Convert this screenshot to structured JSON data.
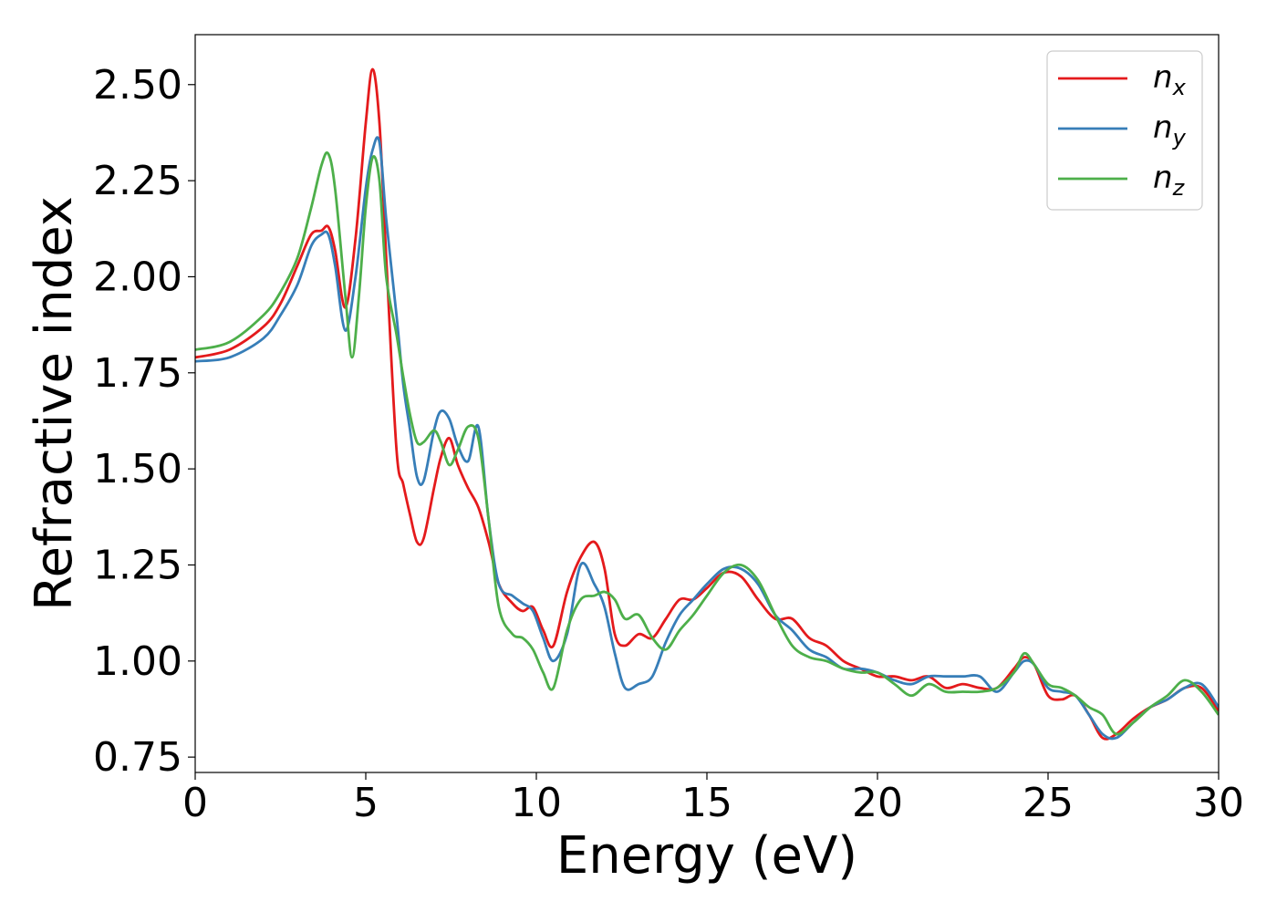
{
  "chart_data": {
    "type": "line",
    "title": "",
    "xlabel": "Energy (eV)",
    "ylabel": "Refractive index",
    "xlim": [
      0,
      30
    ],
    "ylim": [
      0.71,
      2.63
    ],
    "xticks": [
      0,
      5,
      10,
      15,
      20,
      25,
      30
    ],
    "yticks": [
      0.75,
      1.0,
      1.25,
      1.5,
      1.75,
      2.0,
      2.25,
      2.5
    ],
    "ytick_labels": [
      "0.75",
      "1.00",
      "1.25",
      "1.50",
      "1.75",
      "2.00",
      "2.25",
      "2.50"
    ],
    "grid": false,
    "legend_position": "top-right",
    "series": [
      {
        "name": "n",
        "subscript": "x",
        "color": "#e41a1c",
        "x": [
          0,
          1,
          2,
          2.5,
          3,
          3.4,
          3.7,
          3.9,
          4.1,
          4.4,
          4.7,
          5.0,
          5.2,
          5.4,
          5.6,
          5.9,
          6.1,
          6.3,
          6.5,
          6.7,
          7.0,
          7.2,
          7.45,
          7.7,
          8.0,
          8.3,
          8.6,
          8.9,
          9.3,
          9.6,
          9.9,
          10.2,
          10.5,
          10.9,
          11.3,
          11.7,
          12.0,
          12.3,
          12.6,
          13.0,
          13.4,
          13.8,
          14.2,
          14.6,
          15.0,
          15.5,
          16.0,
          16.5,
          17.0,
          17.5,
          18.0,
          18.5,
          19.0,
          19.5,
          20.0,
          20.5,
          21.0,
          21.5,
          22.0,
          22.5,
          23.0,
          23.5,
          24.0,
          24.3,
          24.6,
          25.0,
          25.4,
          25.8,
          26.2,
          26.6,
          27.0,
          27.5,
          28.0,
          28.5,
          29.0,
          29.5,
          30.0
        ],
        "y": [
          1.79,
          1.81,
          1.87,
          1.93,
          2.03,
          2.11,
          2.12,
          2.13,
          2.07,
          1.92,
          2.1,
          2.4,
          2.54,
          2.4,
          2.05,
          1.55,
          1.46,
          1.38,
          1.31,
          1.32,
          1.45,
          1.53,
          1.58,
          1.51,
          1.45,
          1.4,
          1.31,
          1.2,
          1.15,
          1.13,
          1.14,
          1.08,
          1.04,
          1.18,
          1.27,
          1.31,
          1.24,
          1.07,
          1.04,
          1.07,
          1.06,
          1.11,
          1.16,
          1.16,
          1.19,
          1.23,
          1.22,
          1.16,
          1.11,
          1.11,
          1.06,
          1.04,
          1.0,
          0.98,
          0.96,
          0.96,
          0.95,
          0.96,
          0.93,
          0.94,
          0.93,
          0.93,
          0.98,
          1.01,
          0.99,
          0.91,
          0.9,
          0.91,
          0.86,
          0.8,
          0.81,
          0.85,
          0.88,
          0.9,
          0.93,
          0.93,
          0.87
        ]
      },
      {
        "name": "n",
        "subscript": "y",
        "color": "#377eb8",
        "x": [
          0,
          1,
          2,
          2.5,
          3,
          3.4,
          3.7,
          3.9,
          4.1,
          4.4,
          4.7,
          5.0,
          5.2,
          5.4,
          5.6,
          5.9,
          6.1,
          6.3,
          6.5,
          6.7,
          7.0,
          7.2,
          7.45,
          7.7,
          8.0,
          8.3,
          8.6,
          8.9,
          9.3,
          9.6,
          9.9,
          10.2,
          10.5,
          10.9,
          11.3,
          11.7,
          12.0,
          12.3,
          12.6,
          13.0,
          13.4,
          13.8,
          14.2,
          14.6,
          15.0,
          15.5,
          16.0,
          16.5,
          17.0,
          17.5,
          18.0,
          18.5,
          19.0,
          19.5,
          20.0,
          20.5,
          21.0,
          21.5,
          22.0,
          22.5,
          23.0,
          23.5,
          24.0,
          24.3,
          24.6,
          25.0,
          25.4,
          25.8,
          26.2,
          26.6,
          27.0,
          27.5,
          28.0,
          28.5,
          29.0,
          29.5,
          30.0
        ],
        "y": [
          1.78,
          1.79,
          1.84,
          1.9,
          1.98,
          2.08,
          2.11,
          2.11,
          2.03,
          1.86,
          2.0,
          2.23,
          2.33,
          2.35,
          2.15,
          1.9,
          1.72,
          1.6,
          1.48,
          1.47,
          1.6,
          1.65,
          1.63,
          1.56,
          1.52,
          1.61,
          1.37,
          1.2,
          1.17,
          1.15,
          1.13,
          1.06,
          1.0,
          1.07,
          1.25,
          1.2,
          1.14,
          1.02,
          0.93,
          0.94,
          0.96,
          1.05,
          1.12,
          1.16,
          1.2,
          1.24,
          1.24,
          1.2,
          1.12,
          1.08,
          1.03,
          1.01,
          0.98,
          0.98,
          0.97,
          0.95,
          0.94,
          0.96,
          0.96,
          0.96,
          0.96,
          0.92,
          0.97,
          1.0,
          0.99,
          0.93,
          0.92,
          0.91,
          0.86,
          0.81,
          0.8,
          0.84,
          0.88,
          0.9,
          0.93,
          0.94,
          0.88
        ]
      },
      {
        "name": "n",
        "subscript": "z",
        "color": "#4daf4a",
        "x": [
          0,
          1,
          2,
          2.5,
          3,
          3.4,
          3.7,
          3.9,
          4.1,
          4.4,
          4.6,
          4.8,
          5.0,
          5.2,
          5.4,
          5.6,
          5.9,
          6.1,
          6.3,
          6.5,
          6.7,
          7.0,
          7.2,
          7.45,
          7.7,
          8.0,
          8.3,
          8.6,
          8.9,
          9.3,
          9.6,
          9.9,
          10.2,
          10.5,
          10.9,
          11.3,
          11.7,
          12.0,
          12.3,
          12.6,
          13.0,
          13.4,
          13.8,
          14.2,
          14.6,
          15.0,
          15.5,
          16.0,
          16.5,
          17.0,
          17.5,
          18.0,
          18.5,
          19.0,
          19.5,
          20.0,
          20.5,
          21.0,
          21.5,
          22.0,
          22.5,
          23.0,
          23.5,
          24.0,
          24.3,
          24.6,
          25.0,
          25.4,
          25.8,
          26.2,
          26.6,
          27.0,
          27.5,
          28.0,
          28.5,
          29.0,
          29.5,
          30.0
        ],
        "y": [
          1.81,
          1.83,
          1.9,
          1.96,
          2.05,
          2.18,
          2.29,
          2.32,
          2.23,
          1.95,
          1.79,
          1.95,
          2.18,
          2.31,
          2.25,
          2.0,
          1.85,
          1.74,
          1.64,
          1.57,
          1.57,
          1.6,
          1.57,
          1.51,
          1.55,
          1.61,
          1.58,
          1.37,
          1.14,
          1.07,
          1.06,
          1.03,
          0.97,
          0.93,
          1.08,
          1.16,
          1.17,
          1.18,
          1.16,
          1.11,
          1.12,
          1.06,
          1.03,
          1.08,
          1.12,
          1.17,
          1.23,
          1.25,
          1.21,
          1.12,
          1.04,
          1.01,
          1.0,
          0.98,
          0.97,
          0.97,
          0.94,
          0.91,
          0.94,
          0.92,
          0.92,
          0.92,
          0.93,
          0.97,
          1.02,
          0.99,
          0.94,
          0.93,
          0.91,
          0.88,
          0.86,
          0.81,
          0.84,
          0.88,
          0.91,
          0.95,
          0.92,
          0.86
        ]
      }
    ]
  }
}
